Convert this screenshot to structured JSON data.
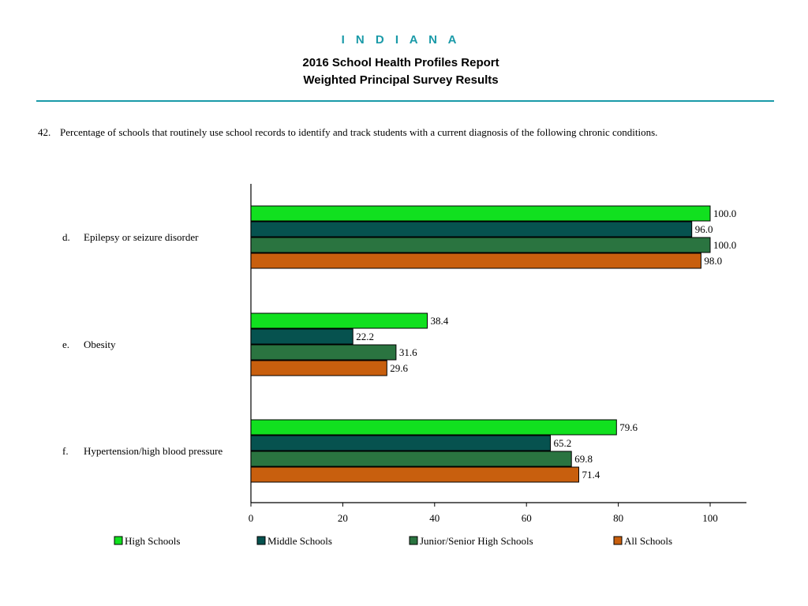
{
  "header": {
    "state": "I N D I A N A",
    "title_line1": "2016 School Health Profiles Report",
    "title_line2": "Weighted Principal Survey Results"
  },
  "question": {
    "number": "42.",
    "text": "Percentage of schools that routinely use school records to identify and track students with a current diagnosis of the following chronic conditions."
  },
  "chart_data": {
    "type": "bar",
    "orientation": "horizontal",
    "categories": [
      {
        "letter": "d.",
        "label": "Epilepsy or seizure disorder"
      },
      {
        "letter": "e.",
        "label": "Obesity"
      },
      {
        "letter": "f.",
        "label": "Hypertension/high blood pressure"
      }
    ],
    "series": [
      {
        "name": "High Schools",
        "color": "#11e01f",
        "values": [
          100.0,
          38.4,
          79.6
        ],
        "labels": [
          "100.0",
          "38.4",
          "79.6"
        ]
      },
      {
        "name": "Middle Schools",
        "color": "#06524f",
        "values": [
          96.0,
          22.2,
          65.2
        ],
        "labels": [
          "96.0",
          "22.2",
          "65.2"
        ]
      },
      {
        "name": "Junior/Senior High Schools",
        "color": "#2a7440",
        "values": [
          100.0,
          31.6,
          69.8
        ],
        "labels": [
          "100.0",
          "31.6",
          "69.8"
        ]
      },
      {
        "name": "All Schools",
        "color": "#c85f0e",
        "values": [
          98.0,
          29.6,
          71.4
        ],
        "labels": [
          "98.0",
          "29.6",
          "71.4"
        ]
      }
    ],
    "xlim": [
      0,
      108
    ],
    "xticks": [
      0,
      20,
      40,
      60,
      80,
      100
    ],
    "grid": false,
    "legend_position": "bottom"
  }
}
